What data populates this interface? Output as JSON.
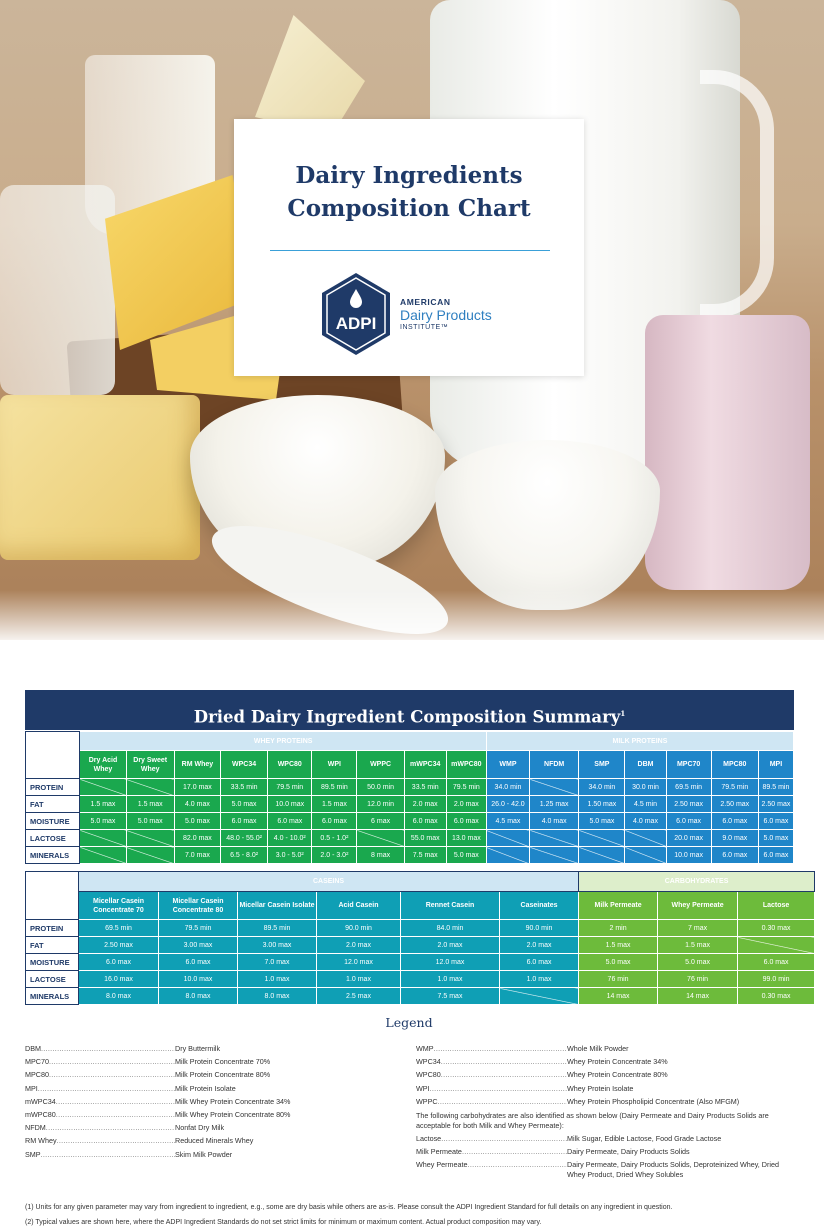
{
  "title": {
    "line1": "Dairy Ingredients",
    "line2": "Composition Chart"
  },
  "logo": {
    "mark": "ADPI",
    "org_line1": "AMERICAN",
    "org_line2": "Dairy Products",
    "org_line3": "INSTITUTE™"
  },
  "summary": {
    "title": "Dried Dairy Ingredient Composition Summary",
    "title_sup": "1",
    "row_labels": [
      "PROTEIN",
      "FAT",
      "MOISTURE",
      "LACTOSE",
      "MINERALS"
    ],
    "whey": {
      "group": "WHEY PROTEINS",
      "columns": [
        "Dry Acid Whey",
        "Dry Sweet Whey",
        "RM Whey",
        "WPC34",
        "WPC80",
        "WPI",
        "WPPC",
        "mWPC34",
        "mWPC80"
      ],
      "rows": [
        [
          "",
          "",
          "17.0 max",
          "33.5 min",
          "79.5 min",
          "89.5 min",
          "50.0 min",
          "33.5 min",
          "79.5 min"
        ],
        [
          "1.5 max",
          "1.5 max",
          "4.0 max",
          "5.0 max",
          "10.0 max",
          "1.5 max",
          "12.0 min",
          "2.0 max",
          "2.0 max"
        ],
        [
          "5.0 max",
          "5.0 max",
          "5.0 max",
          "6.0 max",
          "6.0 max",
          "6.0 max",
          "6 max",
          "6.0 max",
          "6.0 max"
        ],
        [
          "",
          "",
          "82.0 max",
          "48.0 - 55.0²",
          "4.0 - 10.0²",
          "0.5 - 1.0²",
          "",
          "55.0 max",
          "13.0 max"
        ],
        [
          "",
          "",
          "7.0 max",
          "6.5 - 8.0²",
          "3.0 - 5.0²",
          "2.0 - 3.0²",
          "8 max",
          "7.5 max",
          "5.0 max"
        ]
      ]
    },
    "milk": {
      "group": "MILK PROTEINS",
      "columns": [
        "WMP",
        "NFDM",
        "SMP",
        "DBM",
        "MPC70",
        "MPC80",
        "MPI"
      ],
      "rows": [
        [
          "34.0 min",
          "",
          "34.0 min",
          "30.0 min",
          "69.5 min",
          "79.5 min",
          "89.5 min"
        ],
        [
          "26.0 - 42.0",
          "1.25 max",
          "1.50 max",
          "4.5 min",
          "2.50 max",
          "2.50 max",
          "2.50 max"
        ],
        [
          "4.5 max",
          "4.0 max",
          "5.0 max",
          "4.0 max",
          "6.0 max",
          "6.0 max",
          "6.0 max"
        ],
        [
          "",
          "",
          "",
          "",
          "20.0 max",
          "9.0 max",
          "5.0 max"
        ],
        [
          "",
          "",
          "",
          "",
          "10.0 max",
          "6.0 max",
          "6.0 max"
        ]
      ]
    }
  },
  "caseins": {
    "group": "CASEINS",
    "columns": [
      "Micellar Casein Concentrate 70",
      "Micellar Casein Concentrate 80",
      "Micellar Casein Isolate",
      "Acid Casein",
      "Rennet Casein",
      "Caseinates"
    ],
    "rows": [
      [
        "69.5 min",
        "79.5 min",
        "89.5 min",
        "90.0 min",
        "84.0 min",
        "90.0 min"
      ],
      [
        "2.50 max",
        "3.00 max",
        "3.00 max",
        "2.0 max",
        "2.0 max",
        "2.0 max"
      ],
      [
        "6.0 max",
        "6.0 max",
        "7.0 max",
        "12.0 max",
        "12.0 max",
        "6.0 max"
      ],
      [
        "16.0 max",
        "10.0 max",
        "1.0 max",
        "1.0 max",
        "1.0 max",
        "1.0 max"
      ],
      [
        "8.0 max",
        "8.0 max",
        "8.0 max",
        "2.5 max",
        "7.5 max",
        ""
      ]
    ]
  },
  "carbs": {
    "group": "CARBOHYDRATES",
    "columns": [
      "Milk Permeate",
      "Whey Permeate",
      "Lactose"
    ],
    "rows": [
      [
        "2 min",
        "7 max",
        "0.30 max"
      ],
      [
        "1.5 max",
        "1.5 max",
        ""
      ],
      [
        "5.0 max",
        "5.0 max",
        "6.0 max"
      ],
      [
        "76 min",
        "76 min",
        "99.0 min"
      ],
      [
        "14 max",
        "14 max",
        "0.30 max"
      ]
    ]
  },
  "legend": {
    "title": "Legend",
    "left": [
      {
        "k": "DBM",
        "v": "Dry Buttermilk"
      },
      {
        "k": "MPC70",
        "v": "Milk Protein Concentrate 70%"
      },
      {
        "k": "MPC80",
        "v": "Milk Protein Concentrate 80%"
      },
      {
        "k": "MPI",
        "v": "Milk Protein Isolate"
      },
      {
        "k": "mWPC34",
        "v": "Milk Whey Protein Concentrate 34%"
      },
      {
        "k": "mWPC80",
        "v": "Milk Whey Protein Concentrate 80%"
      },
      {
        "k": "NFDM",
        "v": "Nonfat Dry Milk"
      },
      {
        "k": "RM Whey",
        "v": "Reduced Minerals Whey"
      },
      {
        "k": "SMP",
        "v": "Skim Milk Powder"
      }
    ],
    "right": [
      {
        "k": "WMP",
        "v": "Whole Milk Powder"
      },
      {
        "k": "WPC34",
        "v": "Whey Protein Concentrate 34%"
      },
      {
        "k": "WPC80",
        "v": "Whey Protein Concentrate 80%"
      },
      {
        "k": "WPI",
        "v": "Whey Protein Isolate"
      },
      {
        "k": "WPPC",
        "v": "Whey Protein Phospholipid Concentrate (Also MFGM)"
      }
    ],
    "carb_note": "The following carbohydrates are also identified as shown below (Dairy Permeate and Dairy Products Solids are acceptable for both Milk and Whey Permeate):",
    "carb_items": [
      {
        "k": "Lactose",
        "v": "Milk Sugar, Edible Lactose, Food Grade Lactose"
      },
      {
        "k": "Milk Permeate",
        "v": "Dairy Permeate, Dairy Products Solids"
      },
      {
        "k": "Whey Permeate",
        "v": "Dairy Permeate, Dairy Products Solids, Deproteinized Whey, Dried Whey Product, Dried Whey Solubles"
      }
    ]
  },
  "notes": [
    "(1) Units for any given parameter may vary from ingredient to ingredient, e.g., some are dry basis while others are as-is. Please consult the ADPI Ingredient Standard for full details on any ingredient in question.",
    "(2) Typical values are shown here, where the ADPI Ingredient Standards do not set strict limits for minimum or maximum content. Actual product composition may vary."
  ],
  "colors": {
    "navy": "#1f3a68",
    "whey_green": "#1aa84e",
    "milk_blue": "#1f86c9",
    "casein_teal": "#0f9fb5",
    "carb_green": "#6dbb3b",
    "rule_blue": "#3aa0d8"
  }
}
